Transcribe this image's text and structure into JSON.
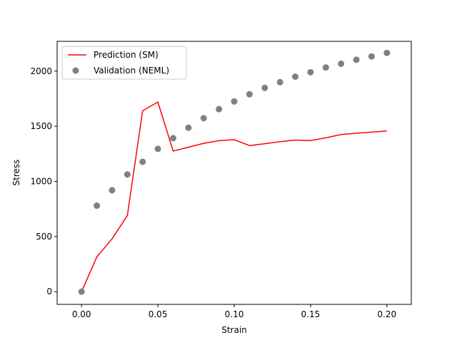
{
  "chart_data": {
    "type": "line",
    "title": "",
    "xlabel": "Strain",
    "ylabel": "Stress",
    "xlim": [
      -0.016,
      0.216
    ],
    "ylim": [
      -115,
      2270
    ],
    "xticks": [
      {
        "value": 0.0,
        "label": "0.00"
      },
      {
        "value": 0.05,
        "label": "0.05"
      },
      {
        "value": 0.1,
        "label": "0.10"
      },
      {
        "value": 0.15,
        "label": "0.15"
      },
      {
        "value": 0.2,
        "label": "0.20"
      }
    ],
    "yticks": [
      {
        "value": 0,
        "label": "0"
      },
      {
        "value": 500,
        "label": "500"
      },
      {
        "value": 1000,
        "label": "1000"
      },
      {
        "value": 1500,
        "label": "1500"
      },
      {
        "value": 2000,
        "label": "2000"
      }
    ],
    "grid": false,
    "legend_position": "top-left",
    "series": [
      {
        "name": "Prediction (SM)",
        "type": "line",
        "color": "#ff0000",
        "x": [
          0.0,
          0.01,
          0.02,
          0.03,
          0.04,
          0.05,
          0.06,
          0.07,
          0.08,
          0.09,
          0.1,
          0.11,
          0.12,
          0.13,
          0.14,
          0.15,
          0.16,
          0.17,
          0.18,
          0.19,
          0.2
        ],
        "y": [
          0,
          315,
          480,
          690,
          1640,
          1720,
          1275,
          1310,
          1345,
          1370,
          1378,
          1325,
          1342,
          1360,
          1375,
          1370,
          1395,
          1425,
          1437,
          1447,
          1457
        ]
      },
      {
        "name": "Validation (NEML)",
        "type": "scatter",
        "color": "#808080",
        "x": [
          0.0,
          0.01,
          0.02,
          0.03,
          0.04,
          0.05,
          0.06,
          0.07,
          0.08,
          0.09,
          0.1,
          0.11,
          0.12,
          0.13,
          0.14,
          0.15,
          0.16,
          0.17,
          0.18,
          0.19,
          0.2
        ],
        "y": [
          0,
          780,
          920,
          1063,
          1178,
          1295,
          1392,
          1487,
          1573,
          1655,
          1725,
          1790,
          1848,
          1900,
          1950,
          1990,
          2033,
          2067,
          2103,
          2133,
          2165
        ]
      }
    ]
  }
}
